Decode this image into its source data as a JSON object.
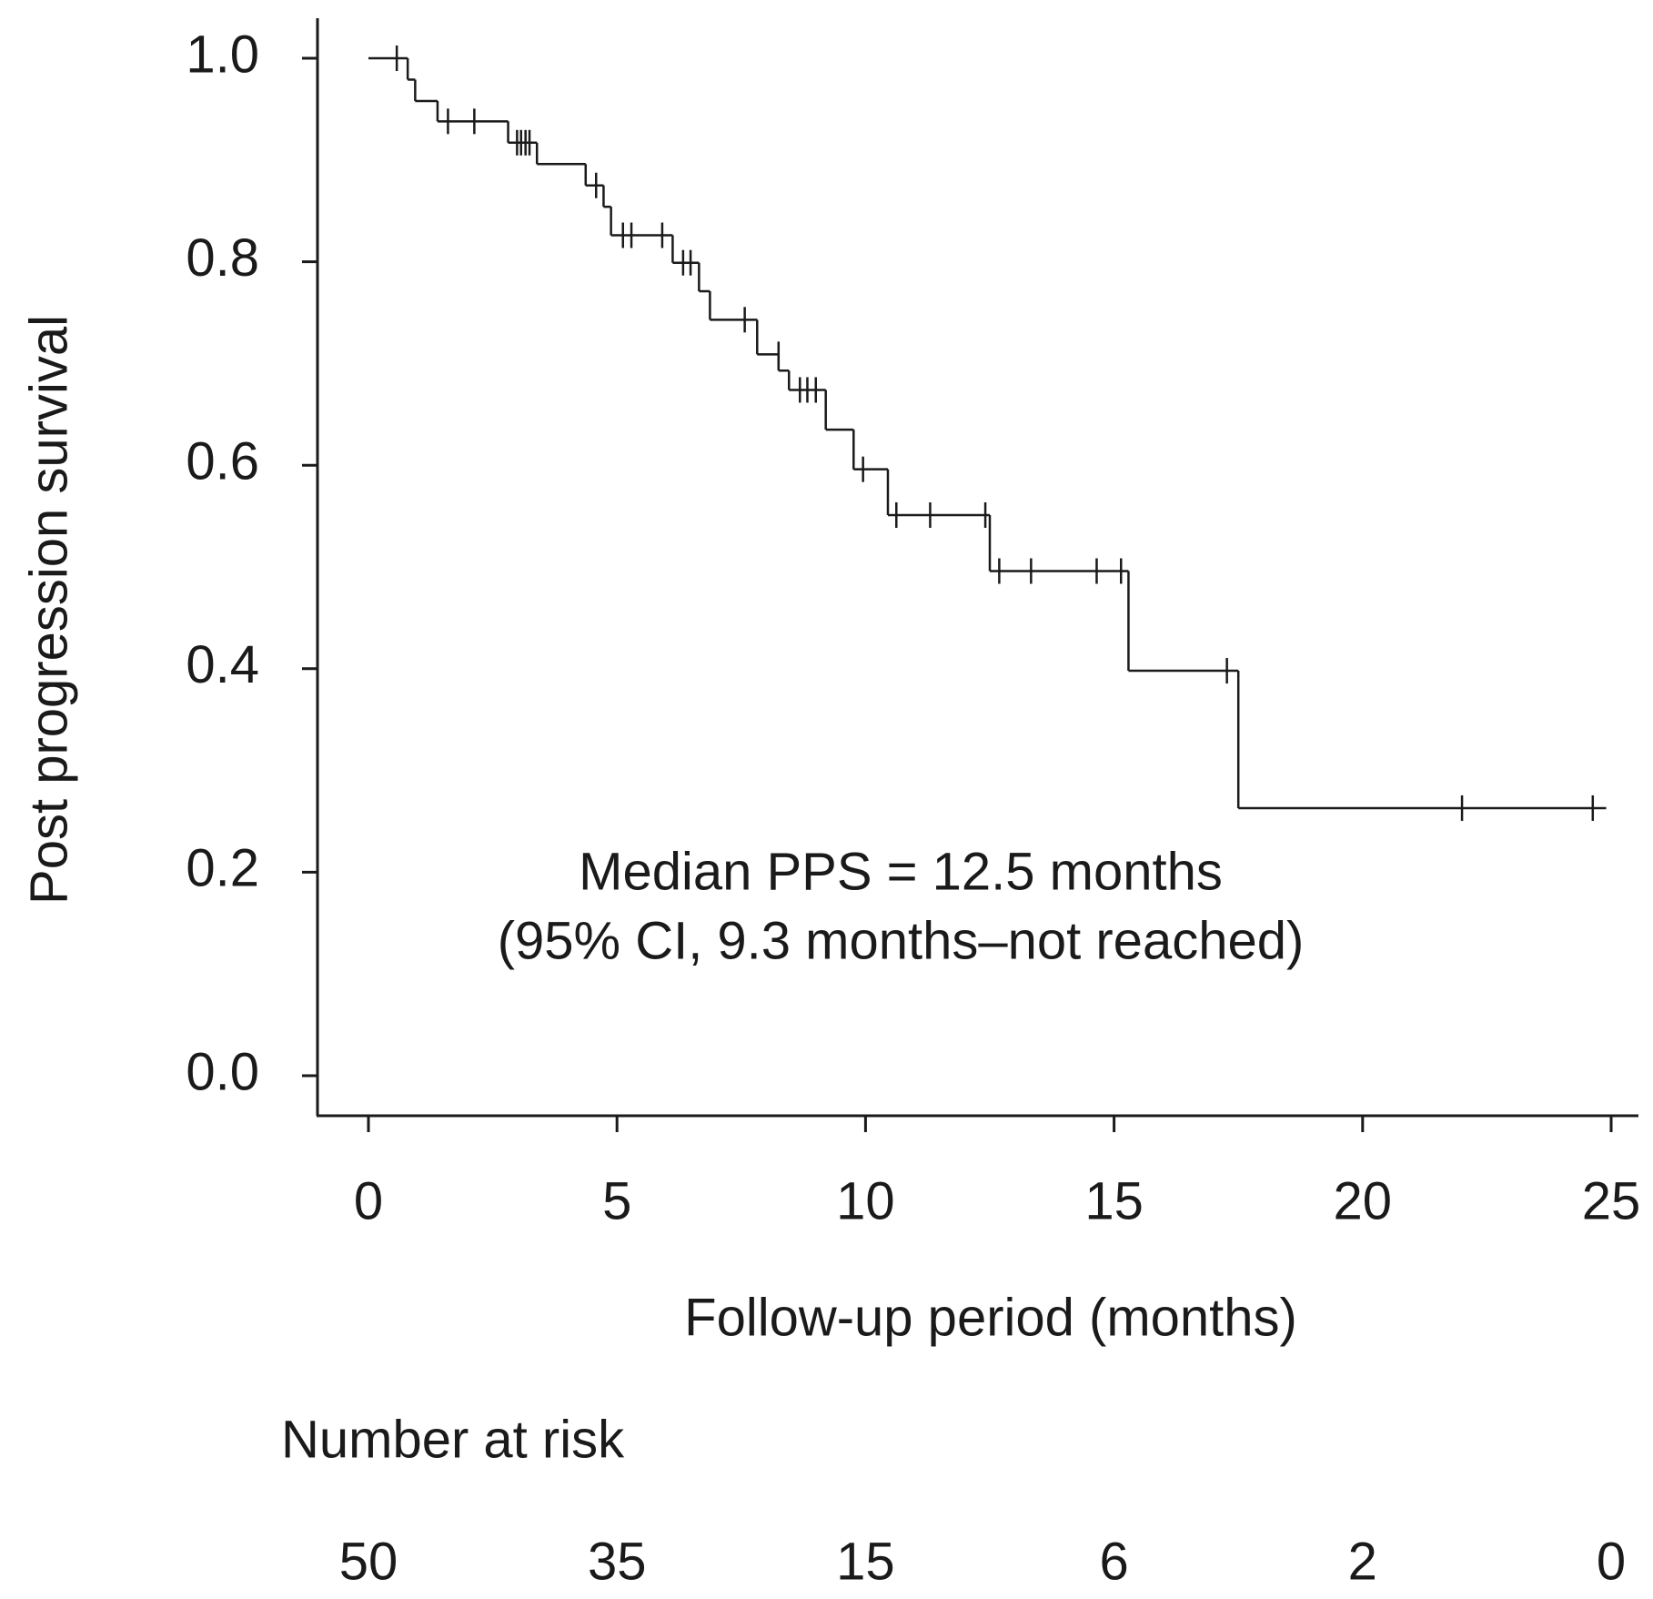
{
  "chart_data": {
    "type": "step",
    "y_label": "Post progression survival",
    "x_label": "Follow-up period (months)",
    "annotations": [
      "Median PPS = 12.5 months",
      "(95% CI, 9.3 months–not reached)"
    ],
    "color": "#1a1a1a",
    "xlim": [
      0,
      25
    ],
    "xticks": [
      0,
      5,
      10,
      15,
      20,
      25
    ],
    "ylim": [
      0,
      1
    ],
    "yticks": [
      {
        "value": 0,
        "label": "0.0"
      },
      {
        "value": 0.2,
        "label": "0.2"
      },
      {
        "value": 0.4,
        "label": "0.4"
      },
      {
        "value": 0.6,
        "label": "0.6"
      },
      {
        "value": 0.8,
        "label": "0.8"
      },
      {
        "value": 1,
        "label": "1.0"
      }
    ],
    "steps": {
      "x": [
        0,
        0.79,
        0.94,
        1.39,
        2.81,
        3.39,
        4.37,
        4.73,
        4.88,
        6.12,
        6.65,
        6.87,
        7.82,
        8.25,
        8.46,
        9.2,
        9.76,
        10.45,
        12.5,
        15.29,
        17.5,
        24.9
      ],
      "y": [
        1.0,
        0.979,
        0.958,
        0.938,
        0.917,
        0.896,
        0.875,
        0.854,
        0.826,
        0.799,
        0.771,
        0.743,
        0.709,
        0.693,
        0.674,
        0.635,
        0.596,
        0.551,
        0.496,
        0.398,
        0.263,
        0.263
      ]
    },
    "censored": {
      "x": [
        0.57,
        1.6,
        2.13,
        2.99,
        3.07,
        3.16,
        3.24,
        4.58,
        5.12,
        5.29,
        5.91,
        6.33,
        6.48,
        7.57,
        8.25,
        8.68,
        8.83,
        9.0,
        9.95,
        10.62,
        11.3,
        12.41,
        12.69,
        13.33,
        14.65,
        15.14,
        17.27,
        22.0,
        24.63
      ],
      "y": [
        1.0,
        0.938,
        0.938,
        0.917,
        0.917,
        0.917,
        0.917,
        0.875,
        0.826,
        0.826,
        0.826,
        0.799,
        0.799,
        0.743,
        0.709,
        0.674,
        0.674,
        0.674,
        0.596,
        0.551,
        0.551,
        0.551,
        0.496,
        0.496,
        0.496,
        0.496,
        0.398,
        0.263,
        0.263
      ]
    },
    "risk_table": {
      "title": "Number  at risk",
      "values": [
        50,
        35,
        15,
        6,
        2,
        0
      ]
    }
  }
}
